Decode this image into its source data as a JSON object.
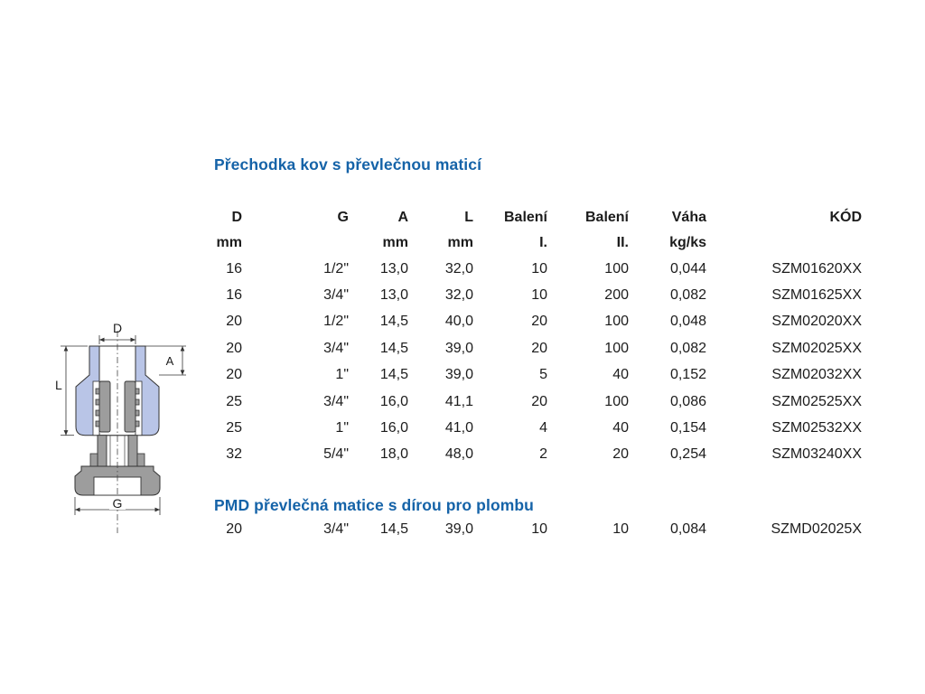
{
  "colors": {
    "accent_blue": "#1563a8",
    "drawing_blue": "#b9c5e7",
    "drawing_gray": "#9d9d9d",
    "text": "#1c1c1c",
    "background": "#ffffff"
  },
  "diagram": {
    "description": "cross-section of metal transition fitting with union nut",
    "labels": {
      "d": "D",
      "a": "A",
      "l": "L",
      "g": "G"
    }
  },
  "section1": {
    "title": "Přechodka kov s převlečnou maticí",
    "table": {
      "header_rows": [
        [
          "D",
          "G",
          "A",
          "L",
          "Balení",
          "Balení",
          "Váha",
          "KÓD"
        ],
        [
          "mm",
          "",
          "mm",
          "mm",
          "I.",
          "II.",
          "kg/ks",
          ""
        ]
      ],
      "rows": [
        [
          "16",
          "1/2\"",
          "13,0",
          "32,0",
          "10",
          "100",
          "0,044",
          "SZM01620XX"
        ],
        [
          "16",
          "3/4\"",
          "13,0",
          "32,0",
          "10",
          "200",
          "0,082",
          "SZM01625XX"
        ],
        [
          "20",
          "1/2\"",
          "14,5",
          "40,0",
          "20",
          "100",
          "0,048",
          "SZM02020XX"
        ],
        [
          "20",
          "3/4\"",
          "14,5",
          "39,0",
          "20",
          "100",
          "0,082",
          "SZM02025XX"
        ],
        [
          "20",
          "1\"",
          "14,5",
          "39,0",
          "5",
          "40",
          "0,152",
          "SZM02032XX"
        ],
        [
          "25",
          "3/4\"",
          "16,0",
          "41,1",
          "20",
          "100",
          "0,086",
          "SZM02525XX"
        ],
        [
          "25",
          "1\"",
          "16,0",
          "41,0",
          "4",
          "40",
          "0,154",
          "SZM02532XX"
        ],
        [
          "32",
          "5/4\"",
          "18,0",
          "48,0",
          "2",
          "20",
          "0,254",
          "SZM03240XX"
        ]
      ]
    }
  },
  "section2": {
    "title": "PMD převlečná matice s dírou pro plombu",
    "table": {
      "rows": [
        [
          "20",
          "3/4\"",
          "14,5",
          "39,0",
          "10",
          "10",
          "0,084",
          "SZMD02025X"
        ]
      ]
    }
  }
}
